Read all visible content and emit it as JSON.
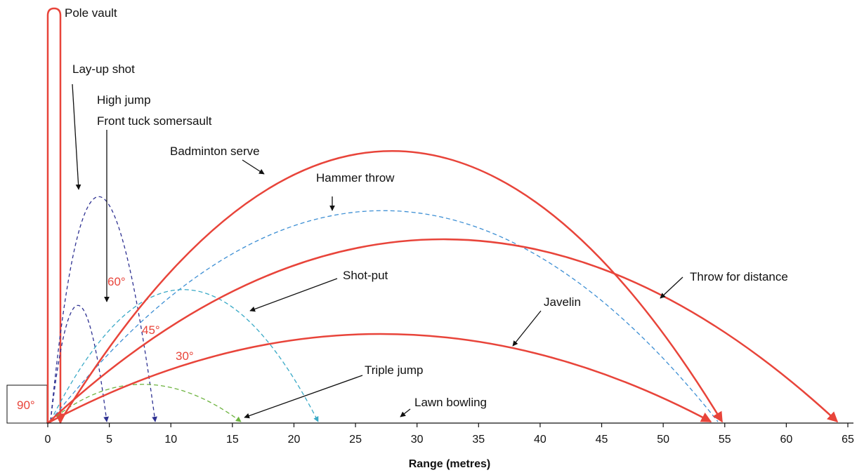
{
  "colors": {
    "red": "#e8443a",
    "navy": "#2e3192",
    "blue": "#3d8fd4",
    "teal": "#39a9c6",
    "green": "#6db33f",
    "black": "#111111"
  },
  "labels": {
    "pole_vault": "Pole vault",
    "layup_shot": "Lay-up shot",
    "high_jump": "High jump",
    "front_tuck": "Front tuck somersault",
    "badminton": "Badminton serve",
    "hammer": "Hammer throw",
    "shot_put": "Shot-put",
    "javelin": "Javelin",
    "throw_distance": "Throw for distance",
    "triple_jump": "Triple jump",
    "lawn_bowling": "Lawn bowling"
  },
  "angles": {
    "a90": "90°",
    "a60": "60°",
    "a45": "45°",
    "a30": "30°"
  },
  "axis": {
    "title": "Range (metres)",
    "ticks": [
      "0",
      "5",
      "10",
      "15",
      "20",
      "25",
      "30",
      "35",
      "40",
      "45",
      "50",
      "55",
      "60",
      "65"
    ]
  }
}
